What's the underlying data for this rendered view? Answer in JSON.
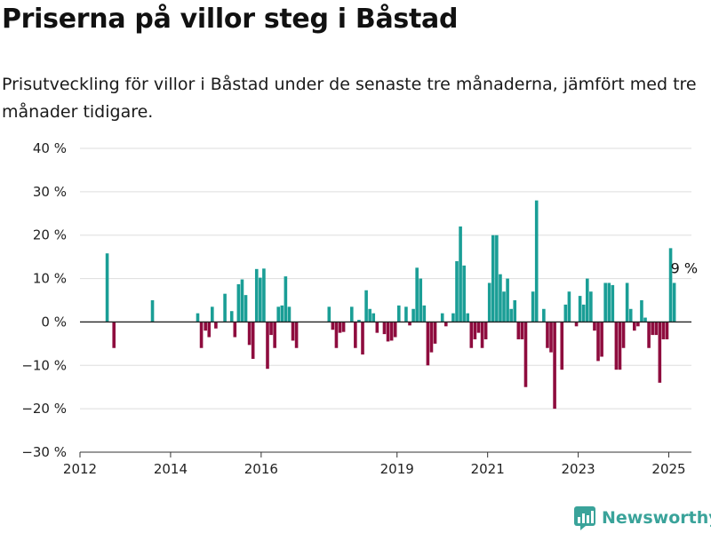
{
  "title": "Priserna på villor steg i Båstad",
  "subtitle": "Prisutveckling för villor i Båstad under de senaste tre månaderna, jämfört med tre månader tidigare.",
  "brand": "Newsworthy",
  "colors": {
    "positive": "#1a9e96",
    "negative": "#8e0c3e",
    "grid": "#dddddd",
    "zero": "#222222",
    "brand": "#3aa39a"
  },
  "chart_data": {
    "type": "bar",
    "y_unit": "%",
    "ylim": [
      -30,
      40
    ],
    "y_ticks": [
      {
        "value": 40,
        "label": "40 %"
      },
      {
        "value": 30,
        "label": "30 %"
      },
      {
        "value": 20,
        "label": "20 %"
      },
      {
        "value": 10,
        "label": "10 %"
      },
      {
        "value": 0,
        "label": "0 %"
      },
      {
        "value": -10,
        "label": "−10 %"
      },
      {
        "value": -20,
        "label": "−20 %"
      },
      {
        "value": -30,
        "label": "−30 %"
      }
    ],
    "x_range": [
      2012,
      2025.5
    ],
    "x_ticks": [
      {
        "value": 2012,
        "label": "2012"
      },
      {
        "value": 2014,
        "label": "2014"
      },
      {
        "value": 2016,
        "label": "2016"
      },
      {
        "value": 2019,
        "label": "2019"
      },
      {
        "value": 2021,
        "label": "2021"
      },
      {
        "value": 2023,
        "label": "2023"
      },
      {
        "value": 2025,
        "label": "2025"
      }
    ],
    "grid": true,
    "annotation": {
      "x": 2025.38,
      "value": 9,
      "label": "9 %"
    },
    "points": [
      {
        "x": 2012.6,
        "y": 15.8
      },
      {
        "x": 2012.75,
        "y": -6
      },
      {
        "x": 2013.6,
        "y": 5
      },
      {
        "x": 2014.6,
        "y": 2
      },
      {
        "x": 2014.68,
        "y": -6
      },
      {
        "x": 2014.77,
        "y": -2
      },
      {
        "x": 2014.85,
        "y": -3.5
      },
      {
        "x": 2014.92,
        "y": 3.5
      },
      {
        "x": 2015.0,
        "y": -1.5
      },
      {
        "x": 2015.2,
        "y": 6.5
      },
      {
        "x": 2015.35,
        "y": 2.5
      },
      {
        "x": 2015.42,
        "y": -3.5
      },
      {
        "x": 2015.5,
        "y": 8.7
      },
      {
        "x": 2015.58,
        "y": 9.8
      },
      {
        "x": 2015.66,
        "y": 6.2
      },
      {
        "x": 2015.74,
        "y": -5.3
      },
      {
        "x": 2015.82,
        "y": -8.5
      },
      {
        "x": 2015.9,
        "y": 12.2
      },
      {
        "x": 2015.98,
        "y": 10.2
      },
      {
        "x": 2016.06,
        "y": 12.3
      },
      {
        "x": 2016.14,
        "y": -10.8
      },
      {
        "x": 2016.22,
        "y": -3
      },
      {
        "x": 2016.3,
        "y": -6
      },
      {
        "x": 2016.38,
        "y": 3.5
      },
      {
        "x": 2016.46,
        "y": 3.8
      },
      {
        "x": 2016.54,
        "y": 10.5
      },
      {
        "x": 2016.62,
        "y": 3.5
      },
      {
        "x": 2016.7,
        "y": -4.3
      },
      {
        "x": 2016.78,
        "y": -6
      },
      {
        "x": 2017.5,
        "y": 3.5
      },
      {
        "x": 2017.58,
        "y": -1.8
      },
      {
        "x": 2017.66,
        "y": -6
      },
      {
        "x": 2017.74,
        "y": -2.5
      },
      {
        "x": 2017.82,
        "y": -2.3
      },
      {
        "x": 2018.0,
        "y": 3.5
      },
      {
        "x": 2018.08,
        "y": -6
      },
      {
        "x": 2018.16,
        "y": 0.5
      },
      {
        "x": 2018.24,
        "y": -7.5
      },
      {
        "x": 2018.32,
        "y": 7.3
      },
      {
        "x": 2018.4,
        "y": 3
      },
      {
        "x": 2018.48,
        "y": 2
      },
      {
        "x": 2018.56,
        "y": -2.5
      },
      {
        "x": 2018.72,
        "y": -2.8
      },
      {
        "x": 2018.8,
        "y": -4.5
      },
      {
        "x": 2018.88,
        "y": -4.3
      },
      {
        "x": 2018.96,
        "y": -3.5
      },
      {
        "x": 2019.04,
        "y": 3.8
      },
      {
        "x": 2019.2,
        "y": 3.5
      },
      {
        "x": 2019.28,
        "y": -0.8
      },
      {
        "x": 2019.36,
        "y": 3
      },
      {
        "x": 2019.44,
        "y": 12.5
      },
      {
        "x": 2019.52,
        "y": 10
      },
      {
        "x": 2019.6,
        "y": 3.8
      },
      {
        "x": 2019.68,
        "y": -10
      },
      {
        "x": 2019.76,
        "y": -7
      },
      {
        "x": 2019.84,
        "y": -5
      },
      {
        "x": 2020.0,
        "y": 2
      },
      {
        "x": 2020.08,
        "y": -1
      },
      {
        "x": 2020.24,
        "y": 2
      },
      {
        "x": 2020.32,
        "y": 14
      },
      {
        "x": 2020.4,
        "y": 22
      },
      {
        "x": 2020.48,
        "y": 13
      },
      {
        "x": 2020.56,
        "y": 2
      },
      {
        "x": 2020.64,
        "y": -6
      },
      {
        "x": 2020.72,
        "y": -4
      },
      {
        "x": 2020.8,
        "y": -2.5
      },
      {
        "x": 2020.88,
        "y": -6
      },
      {
        "x": 2020.96,
        "y": -4
      },
      {
        "x": 2021.04,
        "y": 9
      },
      {
        "x": 2021.12,
        "y": 20
      },
      {
        "x": 2021.2,
        "y": 20
      },
      {
        "x": 2021.28,
        "y": 11
      },
      {
        "x": 2021.36,
        "y": 7
      },
      {
        "x": 2021.44,
        "y": 10
      },
      {
        "x": 2021.52,
        "y": 3
      },
      {
        "x": 2021.6,
        "y": 5
      },
      {
        "x": 2021.68,
        "y": -4
      },
      {
        "x": 2021.76,
        "y": -4
      },
      {
        "x": 2021.84,
        "y": -15
      },
      {
        "x": 2022.0,
        "y": 7
      },
      {
        "x": 2022.08,
        "y": 28
      },
      {
        "x": 2022.24,
        "y": 3
      },
      {
        "x": 2022.32,
        "y": -6
      },
      {
        "x": 2022.4,
        "y": -7
      },
      {
        "x": 2022.48,
        "y": -20
      },
      {
        "x": 2022.64,
        "y": -11
      },
      {
        "x": 2022.72,
        "y": 4
      },
      {
        "x": 2022.8,
        "y": 7
      },
      {
        "x": 2022.96,
        "y": -1
      },
      {
        "x": 2023.04,
        "y": 6
      },
      {
        "x": 2023.12,
        "y": 4
      },
      {
        "x": 2023.2,
        "y": 10
      },
      {
        "x": 2023.28,
        "y": 7
      },
      {
        "x": 2023.36,
        "y": -2
      },
      {
        "x": 2023.44,
        "y": -9
      },
      {
        "x": 2023.52,
        "y": -8
      },
      {
        "x": 2023.6,
        "y": 9
      },
      {
        "x": 2023.68,
        "y": 9
      },
      {
        "x": 2023.76,
        "y": 8.5
      },
      {
        "x": 2023.84,
        "y": -11
      },
      {
        "x": 2023.92,
        "y": -11
      },
      {
        "x": 2024.0,
        "y": -6
      },
      {
        "x": 2024.08,
        "y": 9
      },
      {
        "x": 2024.16,
        "y": 3
      },
      {
        "x": 2024.24,
        "y": -2
      },
      {
        "x": 2024.32,
        "y": -1
      },
      {
        "x": 2024.4,
        "y": 5
      },
      {
        "x": 2024.48,
        "y": 1
      },
      {
        "x": 2024.56,
        "y": -6
      },
      {
        "x": 2024.64,
        "y": -3
      },
      {
        "x": 2024.72,
        "y": -3
      },
      {
        "x": 2024.8,
        "y": -14
      },
      {
        "x": 2024.88,
        "y": -4
      },
      {
        "x": 2024.96,
        "y": -4
      },
      {
        "x": 2025.04,
        "y": 17
      },
      {
        "x": 2025.12,
        "y": 9
      }
    ]
  }
}
